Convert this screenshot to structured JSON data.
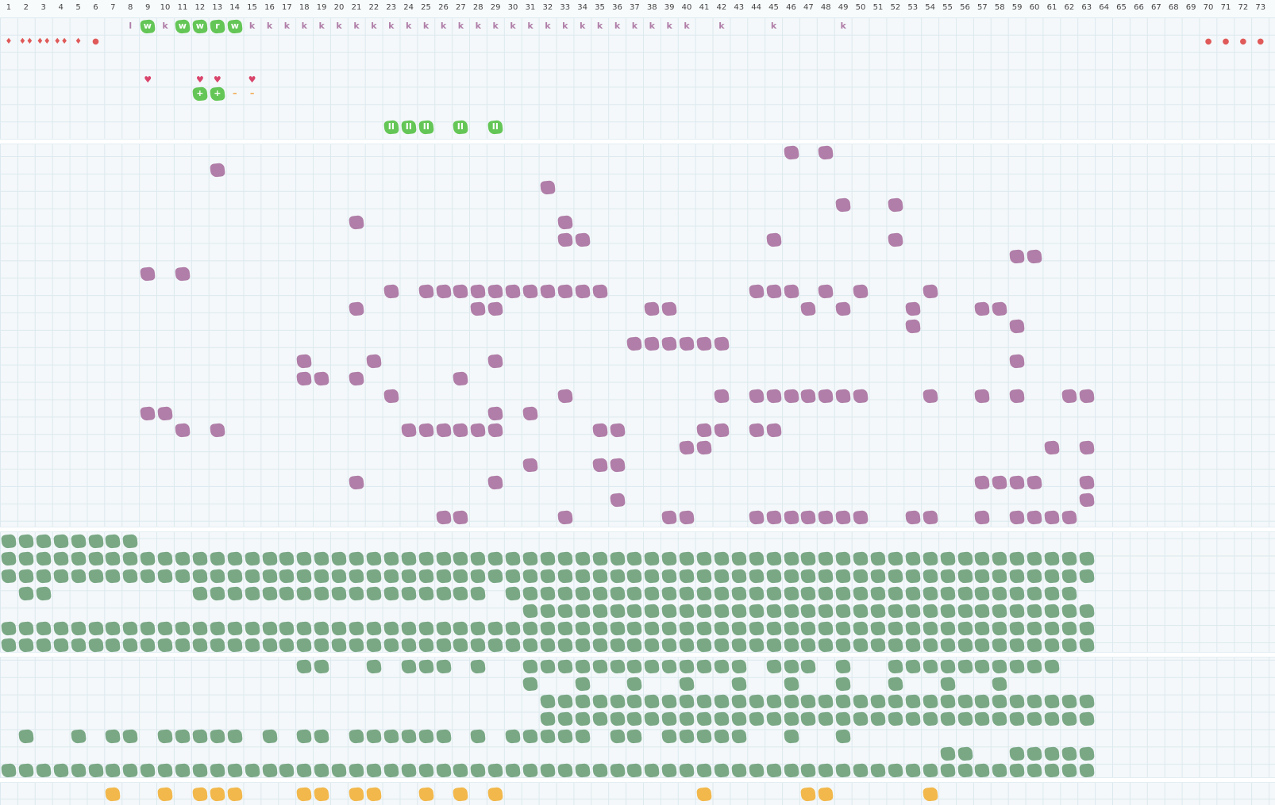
{
  "columns": [
    "1",
    "2",
    "3",
    "4",
    "5",
    "6",
    "7",
    "8",
    "9",
    "10",
    "11",
    "12",
    "13",
    "14",
    "15",
    "16",
    "17",
    "18",
    "19",
    "20",
    "21",
    "22",
    "23",
    "24",
    "25",
    "26",
    "27",
    "28",
    "29",
    "30",
    "31",
    "32",
    "33",
    "34",
    "35",
    "36",
    "37",
    "38",
    "39",
    "40",
    "41",
    "42",
    "43",
    "44",
    "45",
    "46",
    "47",
    "48",
    "49",
    "50",
    "51",
    "52",
    "53",
    "54",
    "55",
    "56",
    "57",
    "58",
    "59",
    "60",
    "61",
    "62",
    "63",
    "64",
    "65",
    "66",
    "67",
    "68",
    "69",
    "70",
    "71",
    "72",
    "73"
  ],
  "colors": {
    "purple": "#b07ea8",
    "green": "#7aa885",
    "light_green": "#64c656",
    "yellow": "#f2b84b",
    "red": "#e05a5a"
  },
  "top_glyphs": [
    {
      "col": 8,
      "row": 1,
      "t": "l",
      "style": "k"
    },
    {
      "col": 9,
      "row": 1,
      "t": "w",
      "style": "lg"
    },
    {
      "col": 10,
      "row": 1,
      "t": "k",
      "style": "k"
    },
    {
      "col": 11,
      "row": 1,
      "t": "w",
      "style": "lg"
    },
    {
      "col": 12,
      "row": 1,
      "t": "w",
      "style": "lg"
    },
    {
      "col": 13,
      "row": 1,
      "t": "r",
      "style": "lg"
    },
    {
      "col": 14,
      "row": 1,
      "t": "w",
      "style": "lg"
    },
    {
      "col": 15,
      "row": 1,
      "t": "k",
      "style": "k"
    },
    {
      "col": 16,
      "row": 1,
      "t": "k",
      "style": "k"
    },
    {
      "col": 17,
      "row": 1,
      "t": "k",
      "style": "k"
    },
    {
      "col": 18,
      "row": 1,
      "t": "k",
      "style": "k"
    },
    {
      "col": 19,
      "row": 1,
      "t": "k",
      "style": "k"
    },
    {
      "col": 20,
      "row": 1,
      "t": "k",
      "style": "k"
    },
    {
      "col": 21,
      "row": 1,
      "t": "k",
      "style": "k"
    },
    {
      "col": 22,
      "row": 1,
      "t": "k",
      "style": "k"
    },
    {
      "col": 23,
      "row": 1,
      "t": "k",
      "style": "k"
    },
    {
      "col": 24,
      "row": 1,
      "t": "k",
      "style": "k"
    },
    {
      "col": 25,
      "row": 1,
      "t": "k",
      "style": "k"
    },
    {
      "col": 26,
      "row": 1,
      "t": "k",
      "style": "k"
    },
    {
      "col": 27,
      "row": 1,
      "t": "k",
      "style": "k"
    },
    {
      "col": 28,
      "row": 1,
      "t": "k",
      "style": "k"
    },
    {
      "col": 29,
      "row": 1,
      "t": "k",
      "style": "k"
    },
    {
      "col": 30,
      "row": 1,
      "t": "k",
      "style": "k"
    },
    {
      "col": 31,
      "row": 1,
      "t": "k",
      "style": "k"
    },
    {
      "col": 32,
      "row": 1,
      "t": "k",
      "style": "k"
    },
    {
      "col": 33,
      "row": 1,
      "t": "k",
      "style": "k"
    },
    {
      "col": 34,
      "row": 1,
      "t": "k",
      "style": "k"
    },
    {
      "col": 35,
      "row": 1,
      "t": "k",
      "style": "k"
    },
    {
      "col": 36,
      "row": 1,
      "t": "k",
      "style": "k"
    },
    {
      "col": 37,
      "row": 1,
      "t": "k",
      "style": "k"
    },
    {
      "col": 38,
      "row": 1,
      "t": "k",
      "style": "k"
    },
    {
      "col": 39,
      "row": 1,
      "t": "k",
      "style": "k"
    },
    {
      "col": 40,
      "row": 1,
      "t": "k",
      "style": "k"
    },
    {
      "col": 42,
      "row": 1,
      "t": "k",
      "style": "k"
    },
    {
      "col": 45,
      "row": 1,
      "t": "k",
      "style": "k"
    },
    {
      "col": 49,
      "row": 1,
      "t": "k",
      "style": "k"
    },
    {
      "col": 1,
      "row": 2,
      "t": "♦",
      "style": "red"
    },
    {
      "col": 2,
      "row": 2,
      "t": "♦♦",
      "style": "red"
    },
    {
      "col": 3,
      "row": 2,
      "t": "♦♦",
      "style": "red"
    },
    {
      "col": 4,
      "row": 2,
      "t": "♦♦",
      "style": "red"
    },
    {
      "col": 5,
      "row": 2,
      "t": "♦",
      "style": "red"
    },
    {
      "col": 6,
      "row": 2,
      "t": "●",
      "style": "red"
    },
    {
      "col": 70,
      "row": 2,
      "t": "●",
      "style": "red"
    },
    {
      "col": 71,
      "row": 2,
      "t": "●",
      "style": "red"
    },
    {
      "col": 72,
      "row": 2,
      "t": "●",
      "style": "red"
    },
    {
      "col": 73,
      "row": 2,
      "t": "●",
      "style": "red"
    },
    {
      "col": 9,
      "row": 4,
      "t": "♥",
      "style": "heart"
    },
    {
      "col": 12,
      "row": 4,
      "t": "♥",
      "style": "heart"
    },
    {
      "col": 13,
      "row": 4,
      "t": "♥",
      "style": "heart"
    },
    {
      "col": 15,
      "row": 4,
      "t": "♥",
      "style": "heart"
    },
    {
      "col": 12,
      "row": 5,
      "t": "+",
      "style": "lg"
    },
    {
      "col": 13,
      "row": 5,
      "t": "+",
      "style": "lg"
    },
    {
      "col": 14,
      "row": 5,
      "t": "–",
      "style": "dash"
    },
    {
      "col": 15,
      "row": 5,
      "t": "–",
      "style": "dash"
    },
    {
      "col": 23,
      "row": 7,
      "t": "II",
      "style": "lg"
    },
    {
      "col": 24,
      "row": 7,
      "t": "II",
      "style": "lg"
    },
    {
      "col": 25,
      "row": 7,
      "t": "II",
      "style": "lg"
    },
    {
      "col": 27,
      "row": 7,
      "t": "II",
      "style": "lg"
    },
    {
      "col": 29,
      "row": 7,
      "t": "II",
      "style": "lg"
    }
  ],
  "purple_rows": [
    [
      46,
      48
    ],
    [
      13
    ],
    [
      32
    ],
    [
      49,
      52
    ],
    [
      21,
      33
    ],
    [
      33,
      34,
      45,
      52
    ],
    [
      59,
      60
    ],
    [
      9,
      11
    ],
    [
      23,
      25,
      26,
      27,
      28,
      29,
      30,
      31,
      32,
      33,
      34,
      35,
      44,
      45,
      46,
      48,
      50,
      54
    ],
    [
      21,
      28,
      29,
      38,
      39,
      47,
      49,
      53,
      57,
      58
    ],
    [
      53,
      59
    ],
    [
      37,
      38,
      39,
      40,
      41,
      42
    ],
    [
      18,
      22,
      29,
      59
    ],
    [
      18,
      19,
      21,
      27
    ],
    [
      23,
      33,
      42,
      44,
      45,
      46,
      47,
      48,
      49,
      50,
      54,
      57,
      59,
      62,
      63
    ],
    [
      9,
      10,
      29,
      31
    ],
    [
      11,
      13,
      24,
      25,
      26,
      27,
      28,
      29,
      35,
      36,
      41,
      42,
      44,
      45
    ],
    [
      40,
      41,
      61,
      63
    ],
    [
      31,
      35,
      36
    ],
    [
      21,
      29,
      57,
      58,
      59,
      60,
      63
    ],
    [
      36,
      63
    ],
    [
      26,
      27,
      33,
      39,
      40,
      44,
      45,
      46,
      47,
      48,
      49,
      50,
      53,
      54,
      57,
      59,
      60,
      61,
      62
    ]
  ],
  "green_rows_a": [
    "1-8",
    "1-63",
    "1-63",
    "2-3,12-28,30-62",
    "31-63",
    "1-63",
    "1-63"
  ],
  "green_rows_b": [
    "18-19,22,24-26,28,31-43,45-47,49,52-61",
    "31,34,37,40,43,46,49,52,55,58",
    "32-63",
    "32-63",
    "2,5,7-8,10-14,16,18-19,21-26,28,30-34,36-37,39-43,46,49",
    "55-56,59-63",
    "1-63"
  ],
  "yellow_row": [
    7,
    10,
    12,
    13,
    14,
    18,
    19,
    21,
    22,
    25,
    27,
    29,
    41,
    47,
    48,
    54
  ]
}
